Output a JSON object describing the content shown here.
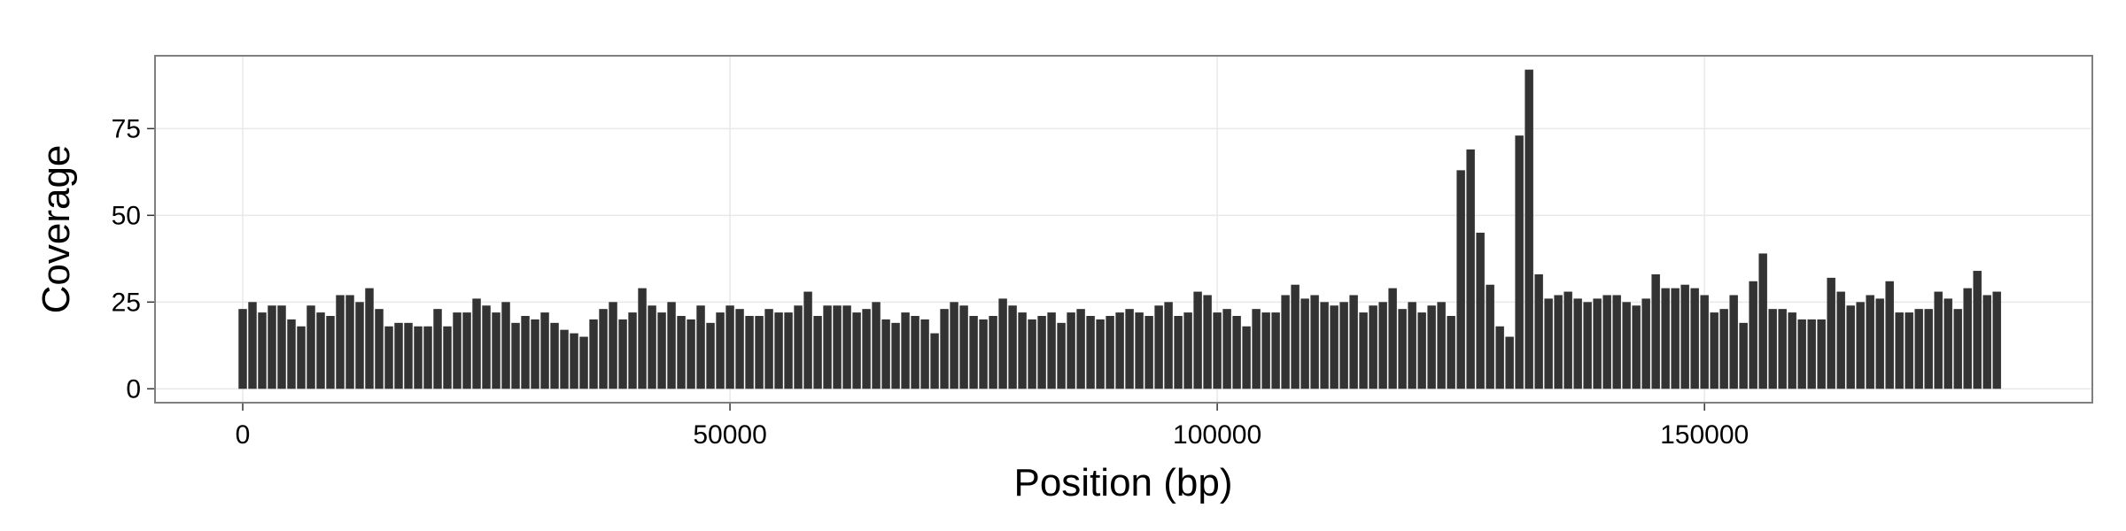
{
  "chart_data": {
    "type": "bar",
    "xlabel": "Position (bp)",
    "ylabel": "Coverage",
    "color": "#333333",
    "grid": true,
    "xlim": [
      -9000,
      189800
    ],
    "ylim": [
      -4,
      96
    ],
    "xticks": [
      0,
      50000,
      100000,
      150000
    ],
    "yticks": [
      0,
      25,
      50,
      75
    ],
    "x": [
      0,
      1000,
      2000,
      3000,
      4000,
      5000,
      6000,
      7000,
      8000,
      9000,
      10000,
      11000,
      12000,
      13000,
      14000,
      15000,
      16000,
      17000,
      18000,
      19000,
      20000,
      21000,
      22000,
      23000,
      24000,
      25000,
      26000,
      27000,
      28000,
      29000,
      30000,
      31000,
      32000,
      33000,
      34000,
      35000,
      36000,
      37000,
      38000,
      39000,
      40000,
      41000,
      42000,
      43000,
      44000,
      45000,
      46000,
      47000,
      48000,
      49000,
      50000,
      51000,
      52000,
      53000,
      54000,
      55000,
      56000,
      57000,
      58000,
      59000,
      60000,
      61000,
      62000,
      63000,
      64000,
      65000,
      66000,
      67000,
      68000,
      69000,
      70000,
      71000,
      72000,
      73000,
      74000,
      75000,
      76000,
      77000,
      78000,
      79000,
      80000,
      81000,
      82000,
      83000,
      84000,
      85000,
      86000,
      87000,
      88000,
      89000,
      90000,
      91000,
      92000,
      93000,
      94000,
      95000,
      96000,
      97000,
      98000,
      99000,
      100000,
      101000,
      102000,
      103000,
      104000,
      105000,
      106000,
      107000,
      108000,
      109000,
      110000,
      111000,
      112000,
      113000,
      114000,
      115000,
      116000,
      117000,
      118000,
      119000,
      120000,
      121000,
      122000,
      123000,
      124000,
      125000,
      126000,
      127000,
      128000,
      129000,
      130000,
      131000,
      132000,
      133000,
      134000,
      135000,
      136000,
      137000,
      138000,
      139000,
      140000,
      141000,
      142000,
      143000,
      144000,
      145000,
      146000,
      147000,
      148000,
      149000,
      150000,
      151000,
      152000,
      153000,
      154000,
      155000,
      156000,
      157000,
      158000,
      159000,
      160000,
      161000,
      162000,
      163000,
      164000,
      165000,
      166000,
      167000,
      168000,
      169000,
      170000,
      171000,
      172000,
      173000,
      174000,
      175000,
      176000,
      177000,
      178000,
      179000,
      180000
    ],
    "values": [
      23,
      25,
      22,
      24,
      24,
      20,
      18,
      24,
      22,
      21,
      27,
      27,
      25,
      29,
      23,
      18,
      19,
      19,
      18,
      18,
      23,
      18,
      22,
      22,
      26,
      24,
      22,
      25,
      19,
      21,
      20,
      22,
      19,
      17,
      16,
      15,
      20,
      23,
      25,
      20,
      22,
      29,
      24,
      22,
      25,
      21,
      20,
      24,
      19,
      22,
      24,
      23,
      21,
      21,
      23,
      22,
      22,
      24,
      28,
      21,
      24,
      24,
      24,
      22,
      23,
      25,
      20,
      19,
      22,
      21,
      20,
      16,
      23,
      25,
      24,
      21,
      20,
      21,
      26,
      24,
      22,
      20,
      21,
      22,
      19,
      22,
      23,
      21,
      20,
      21,
      22,
      23,
      22,
      21,
      24,
      25,
      21,
      22,
      28,
      27,
      22,
      23,
      21,
      18,
      23,
      22,
      22,
      27,
      30,
      26,
      27,
      25,
      24,
      25,
      27,
      22,
      24,
      25,
      29,
      23,
      25,
      22,
      24,
      25,
      21,
      63,
      69,
      45,
      30,
      18,
      15,
      73,
      92,
      33,
      26,
      27,
      28,
      26,
      25,
      26,
      27,
      27,
      25,
      24,
      26,
      33,
      29,
      29,
      30,
      29,
      27,
      22,
      23,
      27,
      19,
      31,
      39,
      23,
      23,
      22,
      20,
      20,
      20,
      32,
      28,
      24,
      25,
      27,
      26,
      31,
      22,
      22,
      23,
      23,
      28,
      26,
      23,
      29,
      34,
      27,
      28
    ]
  }
}
